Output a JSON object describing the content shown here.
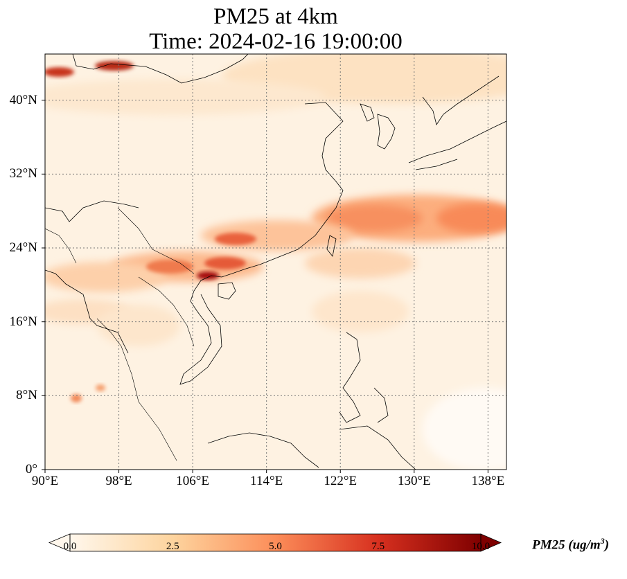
{
  "title_line1": "PM25 at 4km",
  "title_line2": "Time: 2024-02-16 19:00:00",
  "map": {
    "lon_range": [
      90,
      140
    ],
    "lat_range": [
      0,
      45
    ],
    "grid": "dotted",
    "lat_ticks": [
      {
        "value": 40,
        "label": "40°N"
      },
      {
        "value": 32,
        "label": "32°N"
      },
      {
        "value": 24,
        "label": "24°N"
      },
      {
        "value": 16,
        "label": "16°N"
      },
      {
        "value": 8,
        "label": "8°N"
      },
      {
        "value": 0,
        "label": "0°"
      }
    ],
    "lon_ticks": [
      {
        "value": 90,
        "label": "90°E"
      },
      {
        "value": 98,
        "label": "98°E"
      },
      {
        "value": 106,
        "label": "106°E"
      },
      {
        "value": 114,
        "label": "114°E"
      },
      {
        "value": 122,
        "label": "122°E"
      },
      {
        "value": 130,
        "label": "130°E"
      },
      {
        "value": 138,
        "label": "138°E"
      }
    ]
  },
  "colorbar": {
    "label_main": "PM25 (ug/m",
    "label_sup": "3",
    "label_close": ")",
    "min": 0,
    "max": 10,
    "extend": "both",
    "cmap": "OrRd",
    "colors": [
      "#fff7ec",
      "#fdd49e",
      "#fc8d59",
      "#d7301f",
      "#7f0000"
    ],
    "ticks": [
      "0.0",
      "2.5",
      "5.0",
      "7.5",
      "10.0"
    ]
  }
}
